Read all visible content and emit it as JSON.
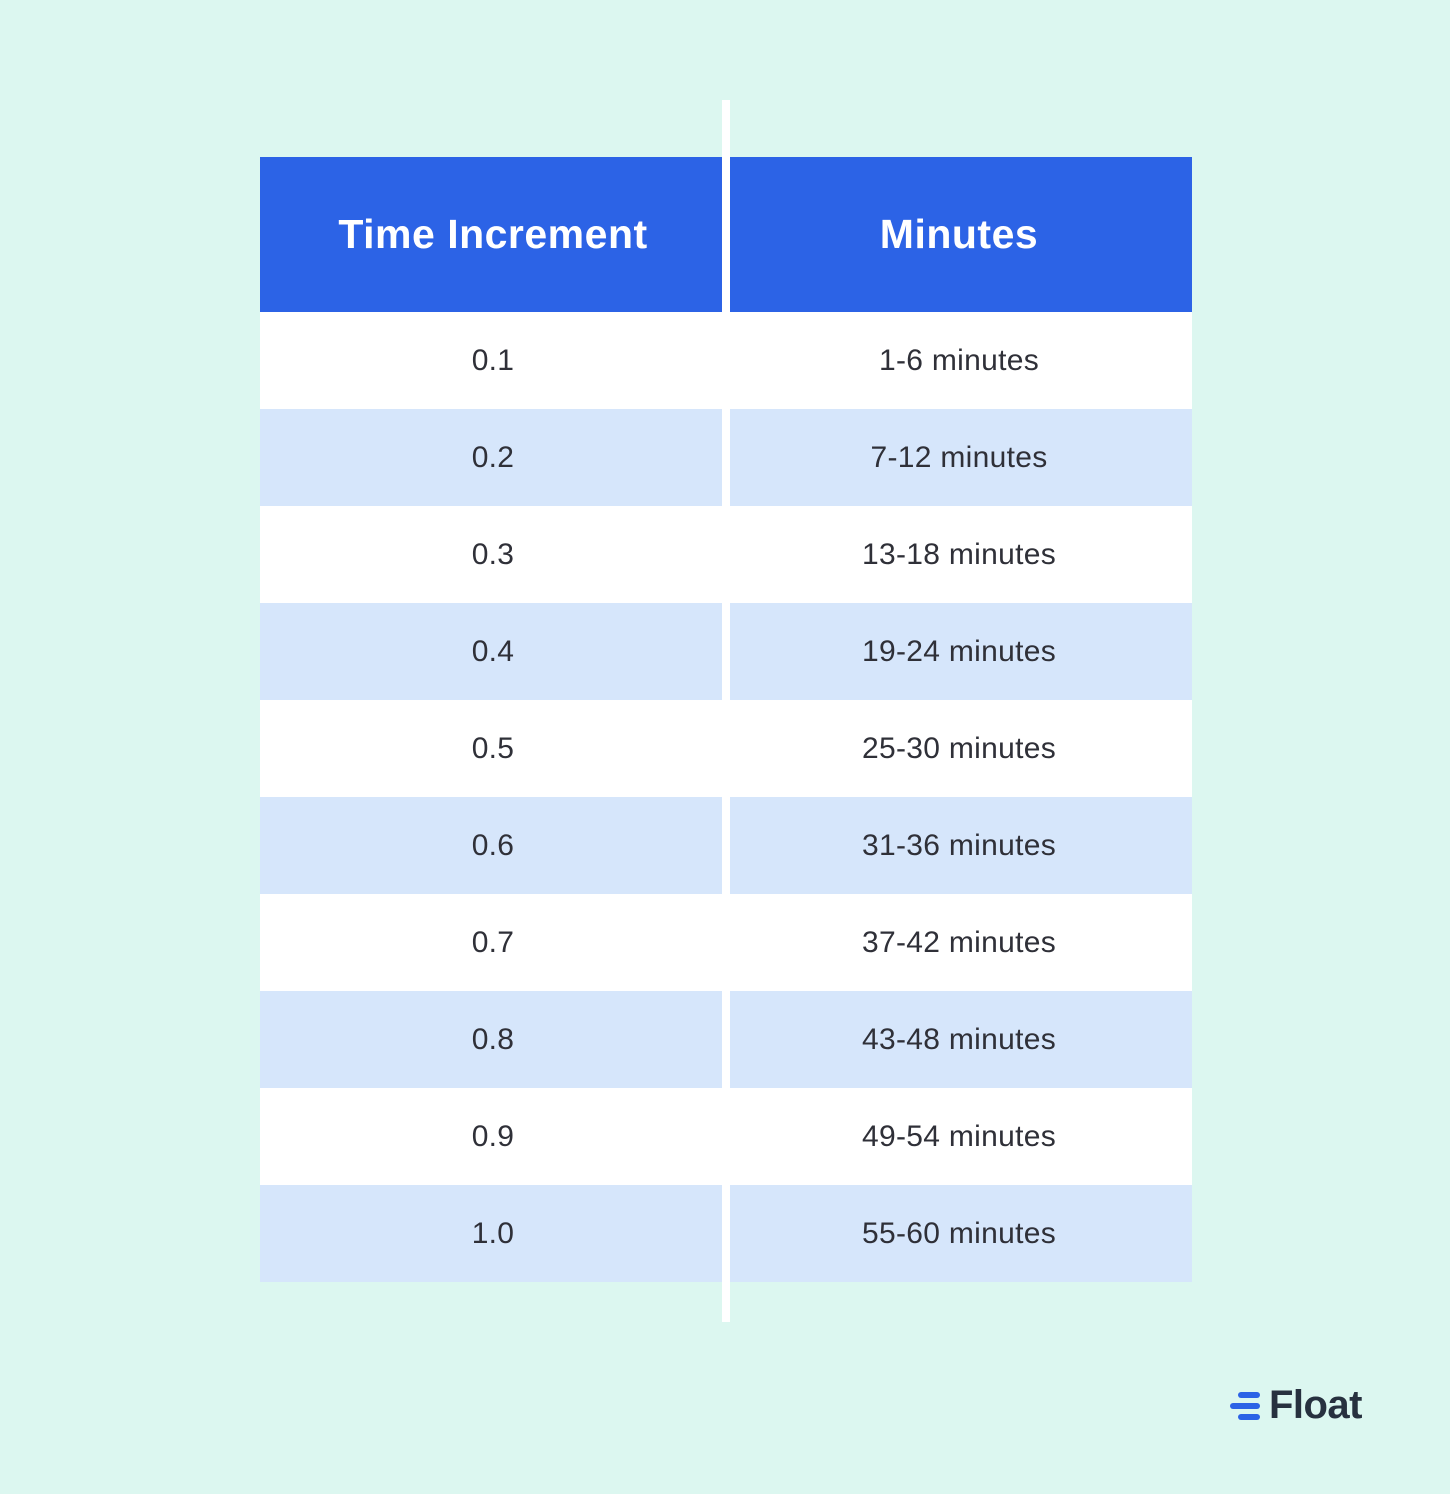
{
  "colors": {
    "background": "#DCF7F0",
    "header_blue": "#2C63E6",
    "row_white": "#FFFFFF",
    "row_alt_blue": "#D6E6FB",
    "cell_text": "#2F3038",
    "header_text": "#FFFFFF",
    "logo_blue": "#2C63E6",
    "logo_text_color": "#27313F"
  },
  "chart_data": {
    "type": "table",
    "columns": [
      "Time Increment",
      "Minutes"
    ],
    "rows": [
      {
        "increment": "0.1",
        "minutes": "1-6 minutes"
      },
      {
        "increment": "0.2",
        "minutes": "7-12 minutes"
      },
      {
        "increment": "0.3",
        "minutes": "13-18 minutes"
      },
      {
        "increment": "0.4",
        "minutes": "19-24 minutes"
      },
      {
        "increment": "0.5",
        "minutes": "25-30 minutes"
      },
      {
        "increment": "0.6",
        "minutes": "31-36 minutes"
      },
      {
        "increment": "0.7",
        "minutes": "37-42 minutes"
      },
      {
        "increment": "0.8",
        "minutes": "43-48 minutes"
      },
      {
        "increment": "0.9",
        "minutes": "49-54 minutes"
      },
      {
        "increment": "1.0",
        "minutes": "55-60 minutes"
      }
    ]
  },
  "logo": {
    "text": "Float"
  }
}
